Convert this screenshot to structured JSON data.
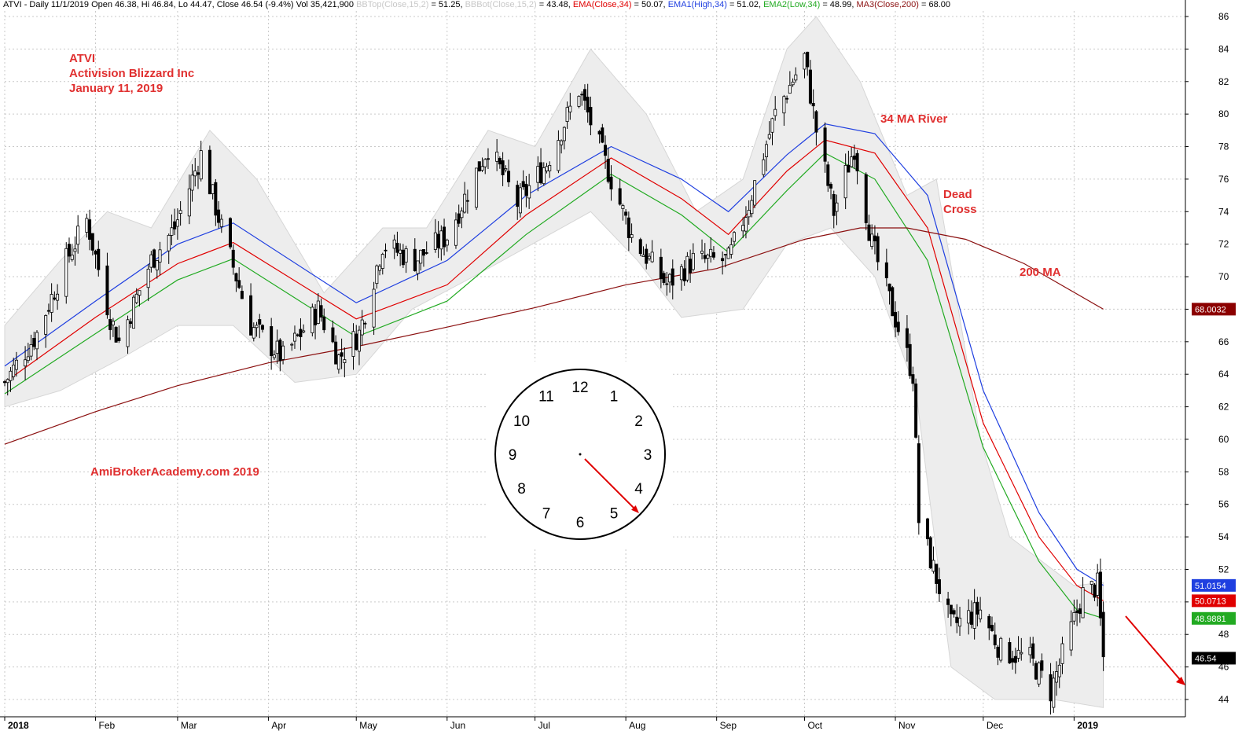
{
  "header": {
    "symbol_info": "ATVI - Daily 11/1/2019 Open 46.38, Hi 46.84, Lo 44.47, Close 46.54 (-9.4%) Vol 35,421,900",
    "bbtop_label": "BBTop(Close,15,2)",
    "bbtop_value": "= 51.25,",
    "bbbot_label": "BBBot(Close,15,2)",
    "bbbot_value": "= 43.48,",
    "ema_label": "EMA(Close,34)",
    "ema_value": "= 50.07,",
    "ema1_label": "EMA1(High,34)",
    "ema1_value": "= 51.02,",
    "ema2_label": "EMA2(Low,34)",
    "ema2_value": "= 48.99,",
    "ma3_label": "MA3(Close,200)",
    "ma3_value": "= 68.00"
  },
  "annotations": {
    "title_symbol": "ATVI",
    "title_company": "Activision Blizzard Inc",
    "title_date": "January 11, 2019",
    "watermark": "AmiBrokerAcademy.com  2019",
    "river_label": "34 MA River",
    "dead_cross_line1": "Dead",
    "dead_cross_line2": "Cross",
    "ma200_label": "200 MA"
  },
  "clock": {
    "numbers": [
      "12",
      "1",
      "2",
      "3",
      "4",
      "5",
      "6",
      "7",
      "8",
      "9",
      "10",
      "11"
    ],
    "hand_points_to": 4.5
  },
  "price_tags": [
    {
      "label": "68.0032",
      "value": 68.0032,
      "color": "#8b0000"
    },
    {
      "label": "51.0154",
      "value": 51.0154,
      "color": "#1f3fe0"
    },
    {
      "label": "50.0713",
      "value": 50.0713,
      "color": "#e00000"
    },
    {
      "label": "48.9881",
      "value": 48.9881,
      "color": "#22aa22"
    },
    {
      "label": "46.54",
      "value": 46.54,
      "color": "#000000"
    }
  ],
  "colors": {
    "ema_close": "#e00000",
    "ema_high": "#1f3fe0",
    "ema_low": "#22aa22",
    "ma200": "#8b1010",
    "band_fill": "#ededed",
    "annotation": "#e03030"
  },
  "chart_data": {
    "type": "candlestick",
    "title": "ATVI - Daily",
    "ylim": [
      43,
      87
    ],
    "y_ticks": [
      44,
      46,
      48,
      50,
      52,
      54,
      56,
      58,
      60,
      62,
      64,
      66,
      68,
      70,
      72,
      74,
      76,
      78,
      80,
      82,
      84,
      86
    ],
    "y_tick_labels": [
      "44",
      "46",
      "48",
      "",
      "52",
      "54",
      "56",
      "58",
      "60",
      "62",
      "64",
      "66",
      "",
      "70",
      "72",
      "74",
      "76",
      "78",
      "80",
      "82",
      "84",
      "86"
    ],
    "x_range": [
      "2018-01-01",
      "2019-02-08"
    ],
    "x_months": [
      {
        "label": "2018",
        "date": "2018-01-01",
        "bold": true
      },
      {
        "label": "Feb",
        "date": "2018-02-01"
      },
      {
        "label": "Mar",
        "date": "2018-03-01"
      },
      {
        "label": "Apr",
        "date": "2018-04-01"
      },
      {
        "label": "May",
        "date": "2018-05-01"
      },
      {
        "label": "Jun",
        "date": "2018-06-01"
      },
      {
        "label": "Jul",
        "date": "2018-07-01"
      },
      {
        "label": "Aug",
        "date": "2018-08-01"
      },
      {
        "label": "Sep",
        "date": "2018-09-01"
      },
      {
        "label": "Oct",
        "date": "2018-10-01"
      },
      {
        "label": "Nov",
        "date": "2018-11-01"
      },
      {
        "label": "Dec",
        "date": "2018-12-01"
      },
      {
        "label": "2019",
        "date": "2019-01-01",
        "bold": true
      }
    ],
    "close_path": [
      {
        "date": "2018-01-01",
        "close": 63.5
      },
      {
        "date": "2018-01-12",
        "close": 66.5
      },
      {
        "date": "2018-01-22",
        "close": 71.0
      },
      {
        "date": "2018-01-29",
        "close": 73.5
      },
      {
        "date": "2018-02-06",
        "close": 67.5
      },
      {
        "date": "2018-02-09",
        "close": 66.0
      },
      {
        "date": "2018-02-20",
        "close": 71.0
      },
      {
        "date": "2018-02-28",
        "close": 73.0
      },
      {
        "date": "2018-03-09",
        "close": 77.5
      },
      {
        "date": "2018-03-16",
        "close": 73.0
      },
      {
        "date": "2018-03-26",
        "close": 67.0
      },
      {
        "date": "2018-04-06",
        "close": 65.0
      },
      {
        "date": "2018-04-18",
        "close": 68.0
      },
      {
        "date": "2018-04-25",
        "close": 65.0
      },
      {
        "date": "2018-05-02",
        "close": 66.5
      },
      {
        "date": "2018-05-10",
        "close": 72.0
      },
      {
        "date": "2018-05-21",
        "close": 71.0
      },
      {
        "date": "2018-06-01",
        "close": 72.5
      },
      {
        "date": "2018-06-15",
        "close": 78.0
      },
      {
        "date": "2018-06-25",
        "close": 74.5
      },
      {
        "date": "2018-07-05",
        "close": 77.0
      },
      {
        "date": "2018-07-16",
        "close": 81.5
      },
      {
        "date": "2018-07-26",
        "close": 76.5
      },
      {
        "date": "2018-08-03",
        "close": 72.5
      },
      {
        "date": "2018-08-15",
        "close": 69.5
      },
      {
        "date": "2018-08-24",
        "close": 71.0
      },
      {
        "date": "2018-09-05",
        "close": 71.0
      },
      {
        "date": "2018-09-12",
        "close": 74.5
      },
      {
        "date": "2018-09-21",
        "close": 80.0
      },
      {
        "date": "2018-10-01",
        "close": 83.5
      },
      {
        "date": "2018-10-05",
        "close": 79.0
      },
      {
        "date": "2018-10-11",
        "close": 74.0
      },
      {
        "date": "2018-10-18",
        "close": 78.0
      },
      {
        "date": "2018-10-24",
        "close": 72.0
      },
      {
        "date": "2018-10-31",
        "close": 68.0
      },
      {
        "date": "2018-11-07",
        "close": 64.0
      },
      {
        "date": "2018-11-09",
        "close": 55.0
      },
      {
        "date": "2018-11-20",
        "close": 48.5
      },
      {
        "date": "2018-11-30",
        "close": 49.5
      },
      {
        "date": "2018-12-07",
        "close": 47.0
      },
      {
        "date": "2018-12-17",
        "close": 46.5
      },
      {
        "date": "2018-12-24",
        "close": 44.5
      },
      {
        "date": "2019-01-04",
        "close": 50.5
      },
      {
        "date": "2019-01-09",
        "close": 51.0
      },
      {
        "date": "2019-01-11",
        "close": 46.54
      }
    ],
    "series": [
      {
        "name": "EMA1(High,34)",
        "color": "#1f3fe0",
        "points": [
          {
            "date": "2018-01-01",
            "value": 64.5
          },
          {
            "date": "2018-02-01",
            "value": 68.5
          },
          {
            "date": "2018-03-01",
            "value": 72.0
          },
          {
            "date": "2018-03-20",
            "value": 73.3
          },
          {
            "date": "2018-05-01",
            "value": 68.4
          },
          {
            "date": "2018-06-01",
            "value": 71.0
          },
          {
            "date": "2018-06-28",
            "value": 75.0
          },
          {
            "date": "2018-07-27",
            "value": 78.0
          },
          {
            "date": "2018-08-20",
            "value": 76.0
          },
          {
            "date": "2018-09-05",
            "value": 74.0
          },
          {
            "date": "2018-09-25",
            "value": 77.5
          },
          {
            "date": "2018-10-08",
            "value": 79.4
          },
          {
            "date": "2018-10-25",
            "value": 78.8
          },
          {
            "date": "2018-11-12",
            "value": 75.0
          },
          {
            "date": "2018-12-01",
            "value": 63.0
          },
          {
            "date": "2018-12-20",
            "value": 55.5
          },
          {
            "date": "2019-01-02",
            "value": 52.0
          },
          {
            "date": "2019-01-11",
            "value": 51.02
          }
        ]
      },
      {
        "name": "EMA(Close,34)",
        "color": "#e00000",
        "points": [
          {
            "date": "2018-01-01",
            "value": 63.5
          },
          {
            "date": "2018-02-01",
            "value": 67.5
          },
          {
            "date": "2018-03-01",
            "value": 70.8
          },
          {
            "date": "2018-03-20",
            "value": 72.1
          },
          {
            "date": "2018-05-01",
            "value": 67.4
          },
          {
            "date": "2018-06-01",
            "value": 69.5
          },
          {
            "date": "2018-06-28",
            "value": 73.8
          },
          {
            "date": "2018-07-27",
            "value": 77.3
          },
          {
            "date": "2018-08-20",
            "value": 74.8
          },
          {
            "date": "2018-09-05",
            "value": 72.6
          },
          {
            "date": "2018-09-25",
            "value": 76.5
          },
          {
            "date": "2018-10-08",
            "value": 78.4
          },
          {
            "date": "2018-10-25",
            "value": 77.6
          },
          {
            "date": "2018-11-12",
            "value": 73.0
          },
          {
            "date": "2018-12-01",
            "value": 61.0
          },
          {
            "date": "2018-12-20",
            "value": 54.0
          },
          {
            "date": "2019-01-02",
            "value": 51.0
          },
          {
            "date": "2019-01-11",
            "value": 50.07
          }
        ]
      },
      {
        "name": "EMA2(Low,34)",
        "color": "#22aa22",
        "points": [
          {
            "date": "2018-01-01",
            "value": 62.8
          },
          {
            "date": "2018-02-01",
            "value": 66.5
          },
          {
            "date": "2018-03-01",
            "value": 69.8
          },
          {
            "date": "2018-03-20",
            "value": 71.1
          },
          {
            "date": "2018-05-01",
            "value": 66.3
          },
          {
            "date": "2018-06-01",
            "value": 68.5
          },
          {
            "date": "2018-06-28",
            "value": 72.6
          },
          {
            "date": "2018-07-27",
            "value": 76.3
          },
          {
            "date": "2018-08-20",
            "value": 73.8
          },
          {
            "date": "2018-09-05",
            "value": 71.5
          },
          {
            "date": "2018-09-25",
            "value": 75.3
          },
          {
            "date": "2018-10-08",
            "value": 77.6
          },
          {
            "date": "2018-10-25",
            "value": 76.0
          },
          {
            "date": "2018-11-12",
            "value": 71.0
          },
          {
            "date": "2018-12-01",
            "value": 59.5
          },
          {
            "date": "2018-12-20",
            "value": 52.5
          },
          {
            "date": "2019-01-02",
            "value": 49.5
          },
          {
            "date": "2019-01-11",
            "value": 48.99
          }
        ]
      },
      {
        "name": "MA3(Close,200)",
        "color": "#8b1010",
        "points": [
          {
            "date": "2018-01-01",
            "value": 59.7
          },
          {
            "date": "2018-02-01",
            "value": 61.7
          },
          {
            "date": "2018-03-01",
            "value": 63.3
          },
          {
            "date": "2018-04-01",
            "value": 64.7
          },
          {
            "date": "2018-05-01",
            "value": 65.7
          },
          {
            "date": "2018-06-01",
            "value": 66.9
          },
          {
            "date": "2018-07-01",
            "value": 68.1
          },
          {
            "date": "2018-08-01",
            "value": 69.5
          },
          {
            "date": "2018-09-01",
            "value": 70.5
          },
          {
            "date": "2018-10-01",
            "value": 72.3
          },
          {
            "date": "2018-10-20",
            "value": 73.0
          },
          {
            "date": "2018-11-05",
            "value": 73.0
          },
          {
            "date": "2018-11-25",
            "value": 72.3
          },
          {
            "date": "2018-12-15",
            "value": 70.8
          },
          {
            "date": "2019-01-11",
            "value": 68.0
          }
        ]
      }
    ],
    "bollinger_band": {
      "name": "BB(Close,15,2)",
      "upper": [
        {
          "date": "2018-01-01",
          "value": 67
        },
        {
          "date": "2018-01-20",
          "value": 71
        },
        {
          "date": "2018-02-05",
          "value": 74
        },
        {
          "date": "2018-02-20",
          "value": 73
        },
        {
          "date": "2018-03-12",
          "value": 79
        },
        {
          "date": "2018-03-28",
          "value": 76
        },
        {
          "date": "2018-04-20",
          "value": 69
        },
        {
          "date": "2018-05-10",
          "value": 73
        },
        {
          "date": "2018-05-25",
          "value": 73
        },
        {
          "date": "2018-06-15",
          "value": 79
        },
        {
          "date": "2018-07-01",
          "value": 78
        },
        {
          "date": "2018-07-20",
          "value": 84
        },
        {
          "date": "2018-08-08",
          "value": 80
        },
        {
          "date": "2018-08-25",
          "value": 74
        },
        {
          "date": "2018-09-10",
          "value": 76
        },
        {
          "date": "2018-09-25",
          "value": 84
        },
        {
          "date": "2018-10-05",
          "value": 86
        },
        {
          "date": "2018-10-20",
          "value": 82
        },
        {
          "date": "2018-11-05",
          "value": 75
        },
        {
          "date": "2018-11-15",
          "value": 76
        },
        {
          "date": "2018-11-30",
          "value": 60
        },
        {
          "date": "2018-12-10",
          "value": 54
        },
        {
          "date": "2019-01-01",
          "value": 51
        },
        {
          "date": "2019-01-11",
          "value": 51.2
        }
      ],
      "lower": [
        {
          "date": "2018-01-01",
          "value": 62
        },
        {
          "date": "2018-01-20",
          "value": 63
        },
        {
          "date": "2018-02-10",
          "value": 65
        },
        {
          "date": "2018-03-01",
          "value": 67
        },
        {
          "date": "2018-03-20",
          "value": 67
        },
        {
          "date": "2018-04-10",
          "value": 63.5
        },
        {
          "date": "2018-05-01",
          "value": 64
        },
        {
          "date": "2018-05-20",
          "value": 68
        },
        {
          "date": "2018-06-10",
          "value": 70
        },
        {
          "date": "2018-06-30",
          "value": 72
        },
        {
          "date": "2018-07-20",
          "value": 74
        },
        {
          "date": "2018-08-05",
          "value": 71
        },
        {
          "date": "2018-08-20",
          "value": 67.5
        },
        {
          "date": "2018-09-10",
          "value": 68
        },
        {
          "date": "2018-09-25",
          "value": 72
        },
        {
          "date": "2018-10-10",
          "value": 73
        },
        {
          "date": "2018-10-25",
          "value": 70
        },
        {
          "date": "2018-11-08",
          "value": 63
        },
        {
          "date": "2018-11-20",
          "value": 46
        },
        {
          "date": "2018-12-05",
          "value": 44
        },
        {
          "date": "2018-12-25",
          "value": 44
        },
        {
          "date": "2019-01-11",
          "value": 43.5
        }
      ]
    }
  }
}
